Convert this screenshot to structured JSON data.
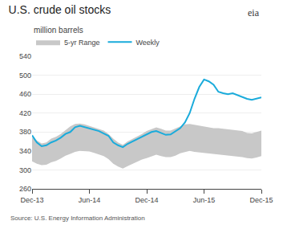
{
  "chart_data": {
    "type": "line",
    "title": "U.S. crude oil stocks",
    "subtitle": "million barrels",
    "source": "Source: U.S. Energy Information Administration",
    "annotations": [
      "eia"
    ],
    "x": [
      0,
      0.5,
      1,
      1.5,
      2,
      2.5,
      3,
      3.5,
      4,
      4.5,
      5,
      5.5,
      6,
      6.5,
      7,
      7.5,
      8,
      8.5,
      9,
      9.5,
      10,
      10.5,
      11,
      11.5,
      12,
      12.5,
      13,
      13.5,
      14,
      14.5,
      15,
      15.5,
      16,
      16.5,
      17,
      17.5,
      18,
      18.5,
      19,
      19.5,
      20,
      20.5,
      21,
      21.5,
      22,
      22.5,
      23,
      23.5,
      24
    ],
    "series": [
      {
        "name": "5-yr Range",
        "type": "area",
        "color": "#c8c8c8",
        "upper": [
          368,
          362,
          356,
          358,
          366,
          370,
          376,
          384,
          392,
          397,
          398,
          396,
          393,
          390,
          387,
          383,
          376,
          366,
          358,
          353,
          360,
          365,
          370,
          376,
          382,
          386,
          390,
          387,
          383,
          383,
          387,
          392,
          396,
          397,
          395,
          393,
          392,
          390,
          388,
          388,
          387,
          386,
          385,
          383,
          382,
          378,
          377,
          380,
          383
        ],
        "lower": [
          318,
          313,
          310,
          311,
          316,
          319,
          324,
          330,
          334,
          338,
          340,
          340,
          339,
          336,
          333,
          329,
          323,
          313,
          307,
          303,
          308,
          313,
          317,
          322,
          325,
          329,
          332,
          329,
          327,
          327,
          330,
          335,
          338,
          340,
          338,
          337,
          336,
          335,
          334,
          333,
          332,
          330,
          329,
          328,
          327,
          325,
          324,
          326,
          329
        ]
      },
      {
        "name": "Weekly",
        "type": "line",
        "color": "#1aabdb",
        "values": [
          373,
          358,
          350,
          352,
          358,
          362,
          368,
          376,
          380,
          390,
          393,
          390,
          388,
          385,
          382,
          377,
          372,
          358,
          352,
          348,
          355,
          360,
          365,
          370,
          375,
          380,
          382,
          378,
          374,
          375,
          382,
          388,
          400,
          420,
          450,
          475,
          491,
          487,
          480,
          465,
          462,
          460,
          462,
          458,
          453,
          450,
          448,
          450,
          453
        ]
      }
    ],
    "xlim": [
      0,
      24
    ],
    "xticks": [
      {
        "value": 0,
        "label": "Dec-13"
      },
      {
        "value": 6,
        "label": "Jun-14"
      },
      {
        "value": 12,
        "label": "Dec-14"
      },
      {
        "value": 18,
        "label": "Jun-15"
      },
      {
        "value": 24,
        "label": "Dec-15"
      }
    ],
    "ylim": [
      260,
      540
    ],
    "yticks": [
      260,
      300,
      340,
      380,
      420,
      460,
      500,
      540
    ],
    "grid": true,
    "legend": "top left"
  }
}
